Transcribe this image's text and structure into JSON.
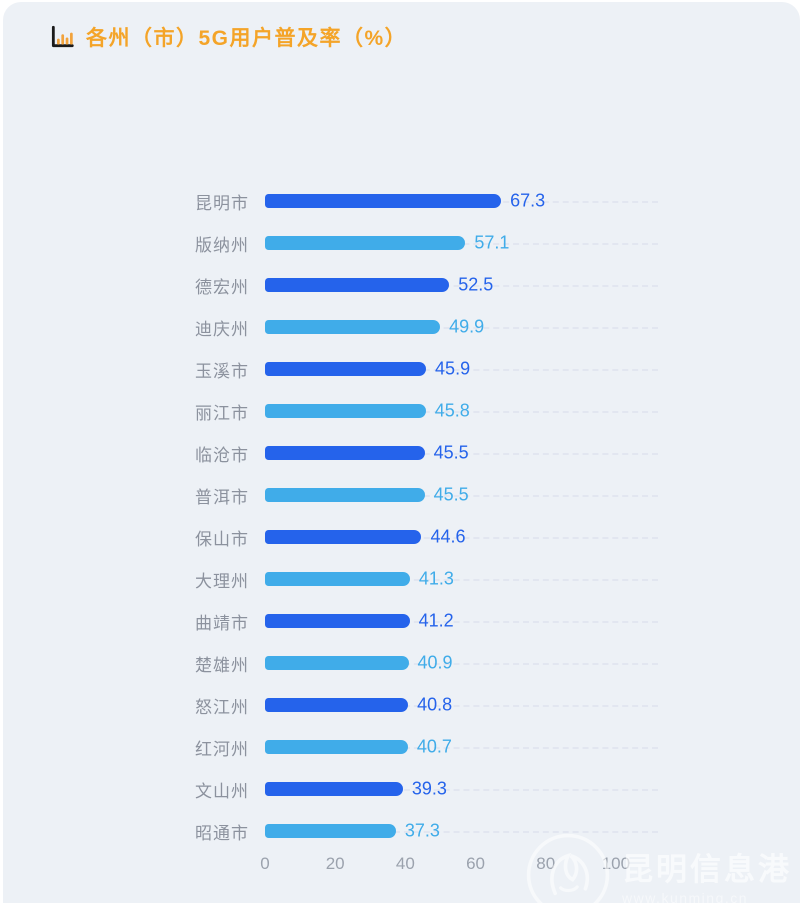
{
  "title": {
    "text": "各州（市）5G用户普及率（%）"
  },
  "watermark": {
    "site_name": "昆明信息港",
    "site_url": "www.kunming.cn"
  },
  "colors": {
    "background": "#EDF1F6",
    "title_orange": "#F4A428",
    "bar_dark_blue": "#2563EB",
    "bar_light_blue": "#40ACE9",
    "category_label_gray": "#8C929E",
    "axis_label_gray": "#9BA2AD",
    "gridline": "#E2E6F0"
  },
  "chart_data": {
    "type": "bar",
    "orientation": "horizontal",
    "title": "各州（市）5G用户普及率（%）",
    "categories": [
      "昆明市",
      "版纳州",
      "德宏州",
      "迪庆州",
      "玉溪市",
      "丽江市",
      "临沧市",
      "普洱市",
      "保山市",
      "大理州",
      "曲靖市",
      "楚雄州",
      "怒江州",
      "红河州",
      "文山州",
      "昭通市"
    ],
    "values": [
      67.3,
      57.1,
      52.5,
      49.9,
      45.9,
      45.8,
      45.5,
      45.5,
      44.6,
      41.3,
      41.2,
      40.9,
      40.8,
      40.7,
      39.3,
      37.3
    ],
    "x_ticks": [
      0,
      20,
      40,
      60,
      80,
      100
    ],
    "xlim": [
      0,
      112
    ],
    "xlabel": "",
    "ylabel": "",
    "legend": "none",
    "grid": "dashed-horizontal-row-lines",
    "bar_color_pattern": [
      "#2563EB",
      "#40ACE9"
    ],
    "value_label_position": "right-of-bar"
  }
}
